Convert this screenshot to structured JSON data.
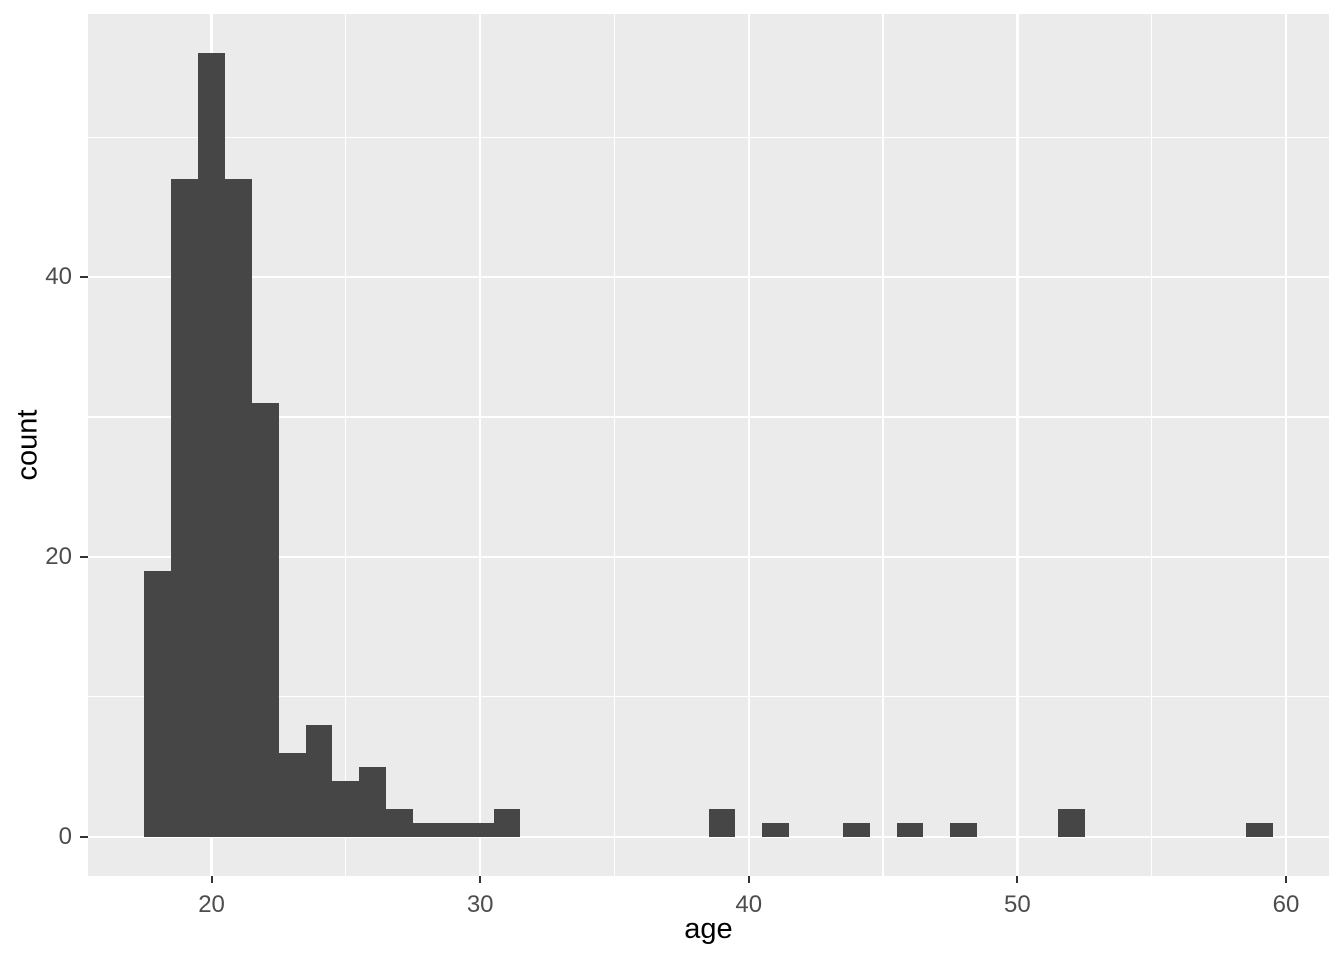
{
  "figure": {
    "xlabel": "age",
    "ylabel": "count"
  },
  "chart_data": {
    "type": "bar",
    "subtype": "histogram",
    "title": "",
    "xlabel": "age",
    "ylabel": "count",
    "bin_width": 1,
    "bins": [
      {
        "x": 18,
        "count": 19
      },
      {
        "x": 19,
        "count": 47
      },
      {
        "x": 20,
        "count": 56
      },
      {
        "x": 21,
        "count": 47
      },
      {
        "x": 22,
        "count": 31
      },
      {
        "x": 23,
        "count": 6
      },
      {
        "x": 24,
        "count": 8
      },
      {
        "x": 25,
        "count": 4
      },
      {
        "x": 26,
        "count": 5
      },
      {
        "x": 27,
        "count": 2
      },
      {
        "x": 28,
        "count": 1
      },
      {
        "x": 29,
        "count": 1
      },
      {
        "x": 30,
        "count": 1
      },
      {
        "x": 31,
        "count": 2
      },
      {
        "x": 39,
        "count": 2
      },
      {
        "x": 41,
        "count": 1
      },
      {
        "x": 44,
        "count": 1
      },
      {
        "x": 46,
        "count": 1
      },
      {
        "x": 48,
        "count": 1
      },
      {
        "x": 52,
        "count": 2
      },
      {
        "x": 59,
        "count": 1
      }
    ],
    "x_ticks": [
      20,
      30,
      40,
      50,
      60
    ],
    "y_ticks": [
      0,
      20,
      40
    ],
    "x_minor_gridlines": [
      25,
      35,
      45,
      55
    ],
    "y_minor_gridlines": [
      10,
      30,
      50
    ],
    "xlim": [
      15.4,
      61.6
    ],
    "ylim": [
      -2.8,
      58.8
    ],
    "grid": "on",
    "legend": "none",
    "colors": {
      "bar_fill": "#464646",
      "panel_background": "#EBEBEB",
      "gridline": "#FFFFFF",
      "tick_label": "#4D4D4D",
      "axis_title": "#000000",
      "tick_mark": "#333333"
    }
  }
}
